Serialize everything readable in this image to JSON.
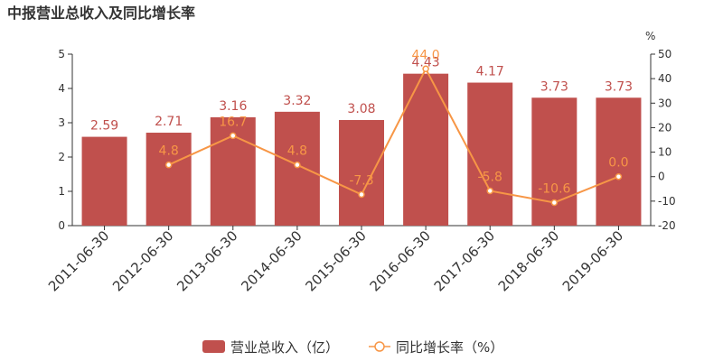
{
  "chart_data": {
    "type": "bar",
    "title": "中报营业总收入及同比增长率",
    "categories": [
      "2011-06-30",
      "2012-06-30",
      "2013-06-30",
      "2014-06-30",
      "2015-06-30",
      "2016-06-30",
      "2017-06-30",
      "2018-06-30",
      "2019-06-30"
    ],
    "series": [
      {
        "name": "营业总收入（亿）",
        "type": "bar",
        "axis": "left",
        "color": "#c0504d",
        "values": [
          2.59,
          2.71,
          3.16,
          3.32,
          3.08,
          4.43,
          4.17,
          3.73,
          3.73
        ],
        "labels": [
          "2.59",
          "2.71",
          "3.16",
          "3.32",
          "3.08",
          "4.43",
          "4.17",
          "3.73",
          "3.73"
        ]
      },
      {
        "name": "同比增长率（%）",
        "type": "line",
        "axis": "right",
        "color": "#f79646",
        "values": [
          null,
          4.8,
          16.7,
          4.8,
          -7.3,
          44.0,
          -5.8,
          -10.6,
          0.0
        ],
        "labels": [
          "",
          "4.8",
          "16.7",
          "4.8",
          "-7.3",
          "44.0",
          "-5.8",
          "-10.6",
          "0.0"
        ]
      }
    ],
    "y_left": {
      "min": 0,
      "max": 5,
      "ticks": [
        "0",
        "1",
        "2",
        "3",
        "4",
        "5"
      ]
    },
    "y_right": {
      "min": -20,
      "max": 50,
      "unit": "%",
      "ticks": [
        "-20",
        "-10",
        "0",
        "10",
        "20",
        "30",
        "40",
        "50"
      ]
    },
    "grid": false,
    "legend_position": "bottom-center"
  }
}
